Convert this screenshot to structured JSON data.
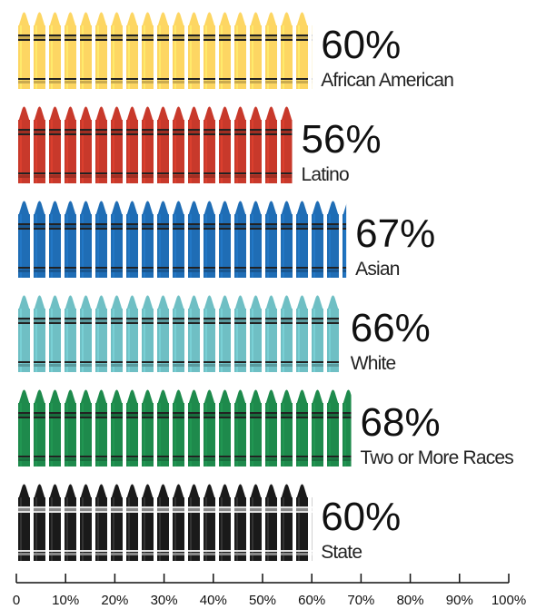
{
  "chart_data": {
    "type": "pictogram-bar",
    "categories": [
      "African American",
      "Latino",
      "Asian",
      "White",
      "Two or More Races",
      "State"
    ],
    "values": [
      60,
      56,
      67,
      66,
      68,
      60
    ],
    "value_labels": [
      "60%",
      "56%",
      "67%",
      "66%",
      "68%",
      "60%"
    ],
    "colors": [
      "#fdd663",
      "#c8392b",
      "#1f6db5",
      "#6fbfc4",
      "#1e8a4c",
      "#1a1a1a"
    ],
    "xlim": [
      0,
      100
    ],
    "xticks": [
      0,
      {
        "value": 10,
        "label": "10%"
      },
      {
        "value": 20,
        "label": "20%"
      },
      {
        "value": 30,
        "label": "30%"
      },
      {
        "value": 40,
        "label": "40%"
      },
      {
        "value": 50,
        "label": "50%"
      },
      {
        "value": 60,
        "label": "60%"
      },
      {
        "value": 70,
        "label": "70%"
      },
      {
        "value": 80,
        "label": "80%"
      },
      {
        "value": 90,
        "label": "90%"
      },
      {
        "value": 100,
        "label": "100%"
      }
    ]
  }
}
